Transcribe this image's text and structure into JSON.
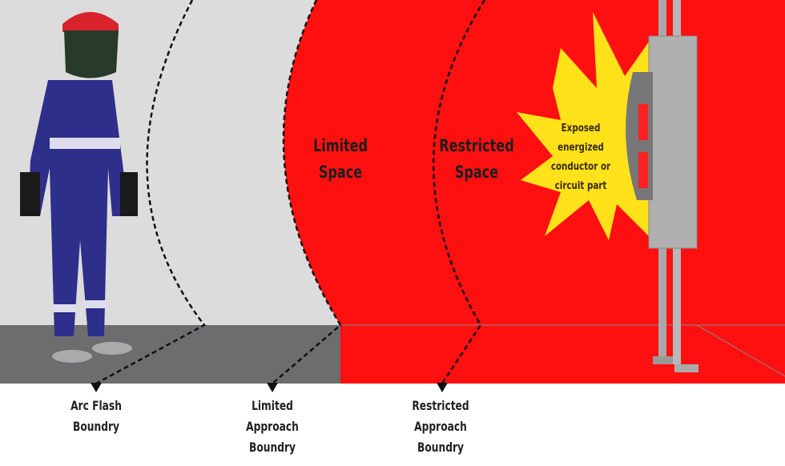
{
  "zones": {
    "limited_space": [
      "Limited",
      "Space"
    ],
    "restricted_space": [
      "Restricted",
      "Space"
    ],
    "exposed": [
      "Exposed",
      "energized",
      "conductor or",
      "circuit part"
    ]
  },
  "boundaries": [
    {
      "lines": [
        "Arc Flash",
        "Boundry"
      ]
    },
    {
      "lines": [
        "Limited",
        "Approach",
        "Boundry"
      ]
    },
    {
      "lines": [
        "Restricted",
        "Approach",
        "Boundry"
      ]
    }
  ],
  "colors": {
    "background": "#dcdcdc",
    "floor": "#6d6d70",
    "green": "#1fb23a",
    "yellow": "#f2e400",
    "orange": "#ff8a00",
    "red": "#ff1a10",
    "suit": "#2e2f8a",
    "helmet": "#d8232a"
  },
  "icons": [
    "worker-in-arc-flash-suit",
    "explosion-burst",
    "electrical-panel",
    "arrow-down"
  ]
}
